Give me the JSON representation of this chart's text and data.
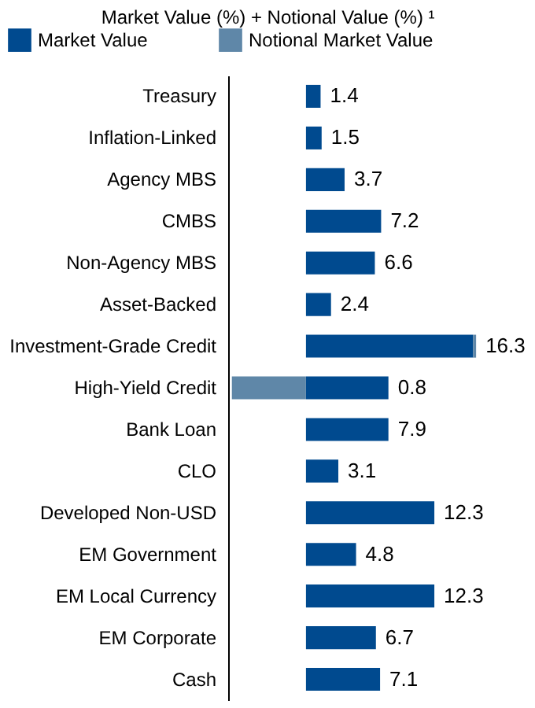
{
  "chart_data": {
    "type": "bar",
    "orientation": "horizontal",
    "stacked": true,
    "title": "Market Value (%) + Notional Value (%) ¹",
    "categories": [
      "Treasury",
      "Inflation-Linked",
      "Agency MBS",
      "CMBS",
      "Non-Agency MBS",
      "Asset-Backed",
      "Investment-Grade Credit",
      "High-Yield Credit",
      "Bank Loan",
      "CLO",
      "Developed Non-USD",
      "EM Government",
      "EM Local Currency",
      "EM Corporate",
      "Cash"
    ],
    "series": [
      {
        "name": "Market Value",
        "color": "#004a8f",
        "values": [
          1.4,
          1.5,
          3.7,
          7.2,
          6.6,
          2.4,
          16.0,
          7.9,
          7.9,
          3.1,
          12.3,
          4.8,
          12.3,
          6.7,
          7.1
        ],
        "value_labels": [
          "1.4",
          "1.5",
          "3.7",
          "7.2",
          "6.6",
          "2.4",
          null,
          null,
          "7.9",
          "3.1",
          "12.3",
          "4.8",
          "12.3",
          "6.7",
          "7.1"
        ]
      },
      {
        "name": "Notional Market Value",
        "color": "#5f87a8",
        "values": [
          null,
          null,
          null,
          null,
          null,
          null,
          0.3,
          -7.1,
          null,
          null,
          null,
          null,
          null,
          null,
          null
        ]
      }
    ],
    "totals": [
      null,
      null,
      null,
      null,
      null,
      null,
      "16.3",
      "0.8",
      null,
      null,
      null,
      null,
      null,
      null,
      null
    ],
    "tick_labels": "y",
    "legend": "top left",
    "grid": false
  }
}
